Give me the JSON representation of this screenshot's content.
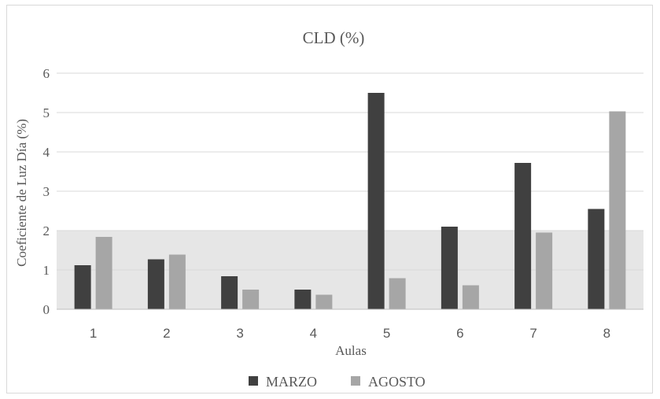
{
  "chart_data": {
    "type": "bar",
    "title": "CLD (%)",
    "xlabel": "Aulas",
    "ylabel": "Coeficiente de Luz Día (%)",
    "categories": [
      "1",
      "2",
      "3",
      "4",
      "5",
      "6",
      "7",
      "8"
    ],
    "series": [
      {
        "name": "MARZO",
        "values": [
          1.12,
          1.27,
          0.84,
          0.5,
          5.5,
          2.1,
          3.72,
          2.55
        ],
        "color": "#404040"
      },
      {
        "name": "AGOSTO",
        "values": [
          1.84,
          1.39,
          0.5,
          0.37,
          0.79,
          0.61,
          1.95,
          5.03
        ],
        "color": "#a6a6a6"
      }
    ],
    "ylim": [
      0,
      6
    ],
    "yticks": [
      "0",
      "1",
      "2",
      "3",
      "4",
      "5",
      "6"
    ],
    "grid": true,
    "legend_position": "bottom",
    "threshold_band": {
      "from": 0,
      "to": 2,
      "color": "#d9d9d9"
    }
  }
}
